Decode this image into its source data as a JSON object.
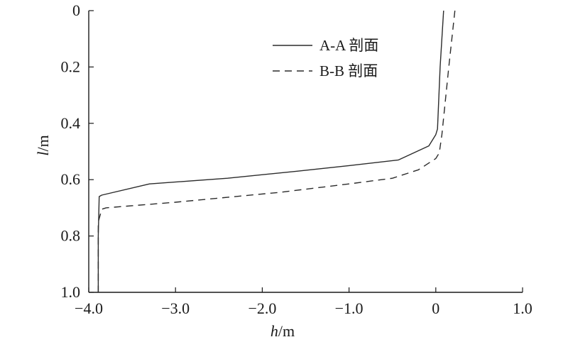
{
  "chart_data": {
    "type": "line",
    "title": "",
    "xlabel": {
      "var": "h",
      "unit": "/m"
    },
    "ylabel": {
      "var": "l",
      "unit": "/m"
    },
    "xlim": [
      -4.0,
      1.0
    ],
    "ylim": [
      0,
      1.0
    ],
    "y_inverted": true,
    "grid": false,
    "legend_position": "top-right",
    "x_ticks": [
      {
        "value": -4.0,
        "label": "−4.0"
      },
      {
        "value": -3.0,
        "label": "−3.0"
      },
      {
        "value": -2.0,
        "label": "−2.0"
      },
      {
        "value": -1.0,
        "label": "−1.0"
      },
      {
        "value": 0.0,
        "label": "0"
      },
      {
        "value": 1.0,
        "label": "1.0"
      }
    ],
    "y_ticks": [
      {
        "value": 0,
        "label": "0"
      },
      {
        "value": 0.2,
        "label": "0.2"
      },
      {
        "value": 0.4,
        "label": "0.4"
      },
      {
        "value": 0.6,
        "label": "0.6"
      },
      {
        "value": 0.8,
        "label": "0.8"
      },
      {
        "value": 1.0,
        "label": "1.0"
      }
    ],
    "series": [
      {
        "name": "A-A 剖面",
        "style": "solid",
        "color": "#2b2b2b",
        "points": [
          [
            0.09,
            0.0
          ],
          [
            0.05,
            0.2
          ],
          [
            0.02,
            0.42
          ],
          [
            0.0,
            0.44
          ],
          [
            -0.08,
            0.48
          ],
          [
            -0.43,
            0.53
          ],
          [
            -1.0,
            0.55
          ],
          [
            -1.6,
            0.57
          ],
          [
            -2.4,
            0.595
          ],
          [
            -3.3,
            0.615
          ],
          [
            -3.85,
            0.655
          ],
          [
            -3.88,
            0.66
          ],
          [
            -3.89,
            0.8
          ],
          [
            -3.89,
            1.0
          ]
        ]
      },
      {
        "name": "B-B 剖面",
        "style": "dashed",
        "color": "#2b2b2b",
        "points": [
          [
            0.22,
            0.0
          ],
          [
            0.15,
            0.2
          ],
          [
            0.07,
            0.44
          ],
          [
            0.04,
            0.505
          ],
          [
            0.0,
            0.525
          ],
          [
            -0.2,
            0.565
          ],
          [
            -0.5,
            0.595
          ],
          [
            -1.0,
            0.615
          ],
          [
            -1.8,
            0.645
          ],
          [
            -3.0,
            0.68
          ],
          [
            -3.8,
            0.7
          ],
          [
            -3.85,
            0.705
          ],
          [
            -3.89,
            0.75
          ],
          [
            -3.89,
            1.0
          ]
        ]
      }
    ]
  }
}
